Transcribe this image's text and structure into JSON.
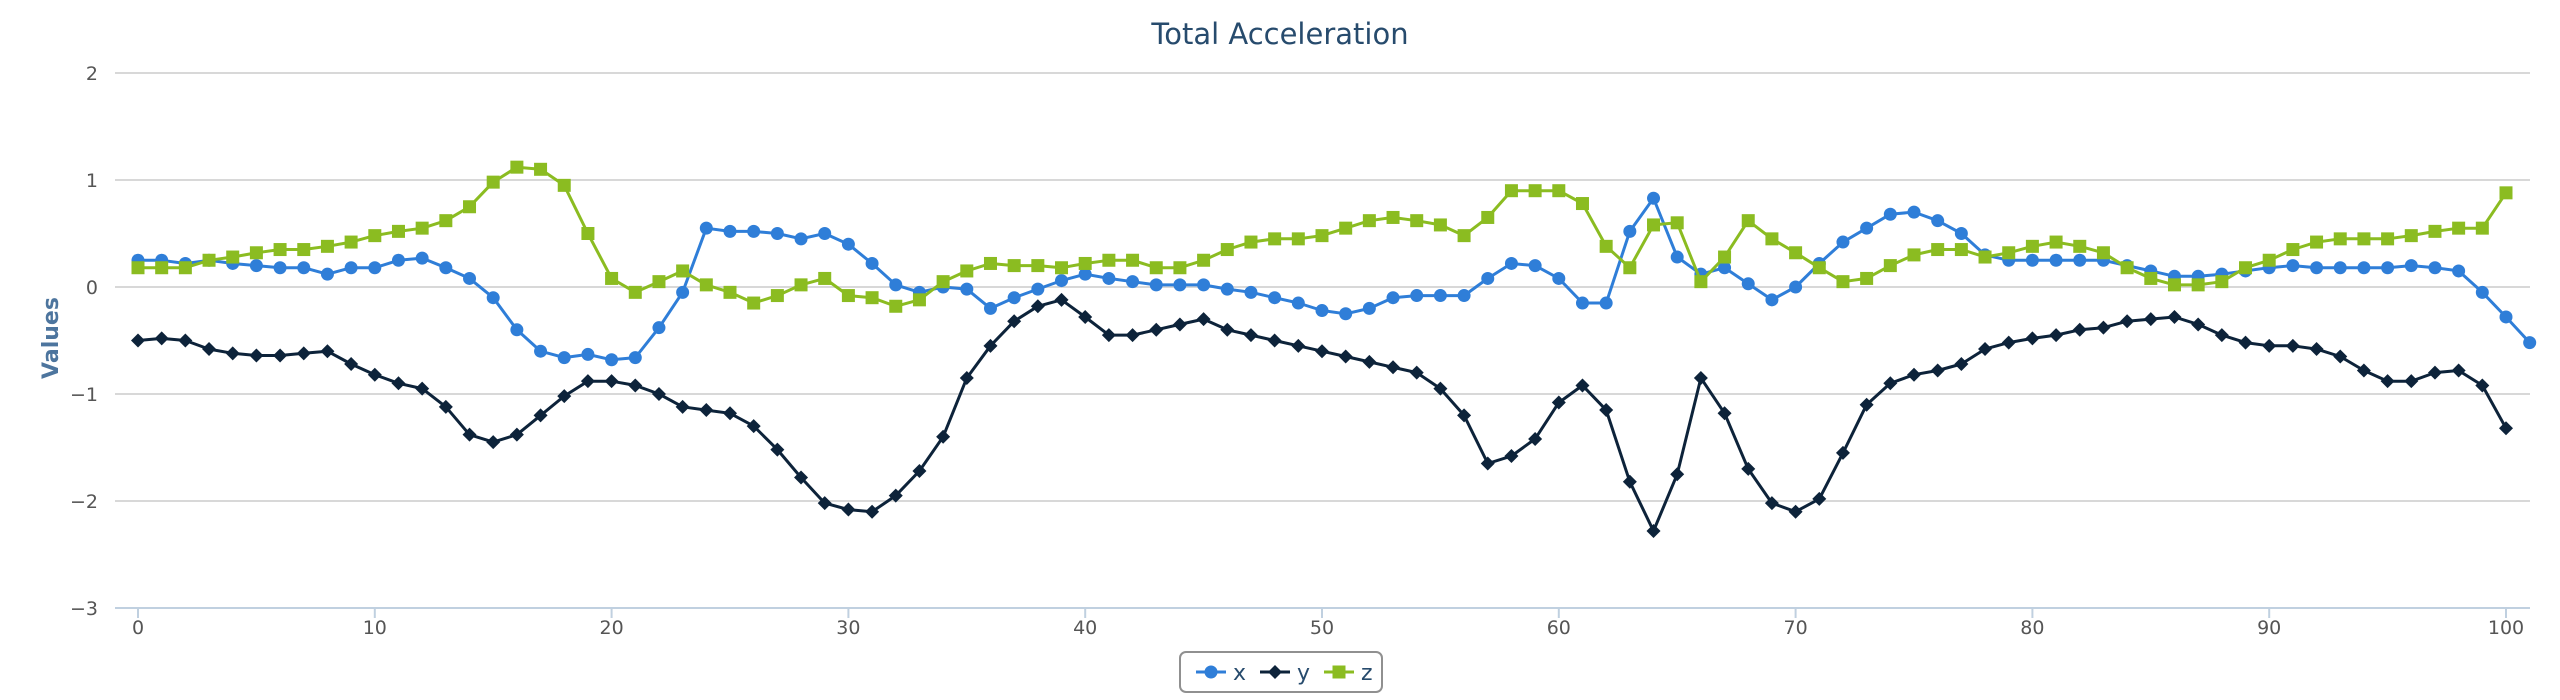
{
  "chart_data": {
    "type": "line",
    "title": "Total Acceleration",
    "xlabel": "",
    "ylabel": "Values",
    "xlim": [
      0,
      100
    ],
    "ylim": [
      -3,
      2
    ],
    "yticks": [
      2,
      1,
      0,
      -1,
      -2,
      -3
    ],
    "yticks_labels": [
      "2",
      "1",
      "0",
      "−1",
      "−2",
      "−3"
    ],
    "xticks": [
      0,
      10,
      20,
      30,
      40,
      50,
      60,
      70,
      80,
      90,
      100
    ],
    "xticks_labels": [
      "0",
      "10",
      "20",
      "30",
      "40",
      "50",
      "60",
      "70",
      "80",
      "90",
      "100"
    ],
    "grid": true,
    "legend": "bottom-center",
    "series": [
      {
        "name": "x",
        "color": "#2f7ed8",
        "marker": "circle",
        "values": [
          0.25,
          0.25,
          0.22,
          0.25,
          0.22,
          0.2,
          0.18,
          0.18,
          0.12,
          0.18,
          0.18,
          0.25,
          0.27,
          0.18,
          0.08,
          -0.1,
          -0.4,
          -0.6,
          -0.66,
          -0.63,
          -0.68,
          -0.66,
          -0.38,
          -0.05,
          0.55,
          0.52,
          0.52,
          0.5,
          0.45,
          0.5,
          0.4,
          0.22,
          0.02,
          -0.05,
          0.0,
          -0.02,
          -0.2,
          -0.1,
          -0.02,
          0.06,
          0.12,
          0.08,
          0.05,
          0.02,
          0.02,
          0.02,
          -0.02,
          -0.05,
          -0.1,
          -0.15,
          -0.22,
          -0.25,
          -0.2,
          -0.1,
          -0.08,
          -0.08,
          -0.08,
          0.08,
          0.22,
          0.2,
          0.08,
          -0.15,
          -0.15,
          0.52,
          0.83,
          0.28,
          0.12,
          0.18,
          0.03,
          -0.12,
          0.0,
          0.22,
          0.42,
          0.55,
          0.68,
          0.7,
          0.62,
          0.5,
          0.3,
          0.25,
          0.25,
          0.25,
          0.25,
          0.25,
          0.2,
          0.15,
          0.1,
          0.1,
          0.12,
          0.15,
          0.18,
          0.2,
          0.18,
          0.18,
          0.18,
          0.18,
          0.2,
          0.18,
          0.15,
          -0.05,
          -0.28,
          -0.52
        ]
      },
      {
        "name": "y",
        "color": "#0d233a",
        "marker": "diamond",
        "values": [
          -0.5,
          -0.48,
          -0.5,
          -0.58,
          -0.62,
          -0.64,
          -0.64,
          -0.62,
          -0.6,
          -0.72,
          -0.82,
          -0.9,
          -0.95,
          -1.12,
          -1.38,
          -1.45,
          -1.38,
          -1.2,
          -1.02,
          -0.88,
          -0.88,
          -0.92,
          -1.0,
          -1.12,
          -1.15,
          -1.18,
          -1.3,
          -1.52,
          -1.78,
          -2.02,
          -2.08,
          -2.1,
          -1.95,
          -1.72,
          -1.4,
          -0.85,
          -0.55,
          -0.32,
          -0.18,
          -0.12,
          -0.28,
          -0.45,
          -0.45,
          -0.4,
          -0.35,
          -0.3,
          -0.4,
          -0.45,
          -0.5,
          -0.55,
          -0.6,
          -0.65,
          -0.7,
          -0.75,
          -0.8,
          -0.95,
          -1.2,
          -1.65,
          -1.58,
          -1.42,
          -1.08,
          -0.92,
          -1.15,
          -1.82,
          -2.28,
          -1.75,
          -0.85,
          -1.18,
          -1.7,
          -2.02,
          -2.1,
          -1.98,
          -1.55,
          -1.1,
          -0.9,
          -0.82,
          -0.78,
          -0.72,
          -0.58,
          -0.52,
          -0.48,
          -0.45,
          -0.4,
          -0.38,
          -0.32,
          -0.3,
          -0.28,
          -0.35,
          -0.45,
          -0.52,
          -0.55,
          -0.55,
          -0.58,
          -0.65,
          -0.78,
          -0.88,
          -0.88,
          -0.8,
          -0.78,
          -0.92,
          -1.32
        ]
      },
      {
        "name": "z",
        "color": "#8bbc21",
        "marker": "square",
        "values": [
          0.18,
          0.18,
          0.18,
          0.25,
          0.28,
          0.32,
          0.35,
          0.35,
          0.38,
          0.42,
          0.48,
          0.52,
          0.55,
          0.62,
          0.75,
          0.98,
          1.12,
          1.1,
          0.95,
          0.5,
          0.08,
          -0.05,
          0.05,
          0.15,
          0.02,
          -0.05,
          -0.15,
          -0.08,
          0.02,
          0.08,
          -0.08,
          -0.1,
          -0.18,
          -0.12,
          0.05,
          0.15,
          0.22,
          0.2,
          0.2,
          0.18,
          0.22,
          0.25,
          0.25,
          0.18,
          0.18,
          0.25,
          0.35,
          0.42,
          0.45,
          0.45,
          0.48,
          0.55,
          0.62,
          0.65,
          0.62,
          0.58,
          0.48,
          0.65,
          0.9,
          0.9,
          0.9,
          0.78,
          0.38,
          0.18,
          0.58,
          0.6,
          0.05,
          0.28,
          0.62,
          0.45,
          0.32,
          0.18,
          0.05,
          0.08,
          0.2,
          0.3,
          0.35,
          0.35,
          0.28,
          0.32,
          0.38,
          0.42,
          0.38,
          0.32,
          0.18,
          0.08,
          0.02,
          0.02,
          0.05,
          0.18,
          0.25,
          0.35,
          0.42,
          0.45,
          0.45,
          0.45,
          0.48,
          0.52,
          0.55,
          0.55,
          0.88
        ]
      }
    ]
  }
}
